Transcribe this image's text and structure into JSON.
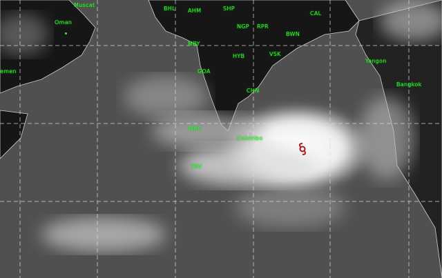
{
  "map": {
    "type": "infrared satellite image",
    "colors": {
      "ocean": "#505050",
      "land": "#141414",
      "cloud": "#f2f2f2",
      "labels": "#3cf03c",
      "cyclone_symbol": "#b01818"
    },
    "labels": [
      {
        "id": "muscat",
        "text": "Muscat"
      },
      {
        "id": "oman",
        "text": "Oman"
      },
      {
        "id": "yemen",
        "text": "emen"
      },
      {
        "id": "bhl",
        "text": "BHL"
      },
      {
        "id": "ahm",
        "text": "AHM"
      },
      {
        "id": "shp",
        "text": "SHP"
      },
      {
        "id": "ngp",
        "text": "NGP"
      },
      {
        "id": "rpr",
        "text": "RPR"
      },
      {
        "id": "cal",
        "text": "CAL"
      },
      {
        "id": "bwn",
        "text": "BWN"
      },
      {
        "id": "mby",
        "text": "MBY"
      },
      {
        "id": "hyb",
        "text": "HYB"
      },
      {
        "id": "vsk",
        "text": "VSK"
      },
      {
        "id": "goa",
        "text": "GOA"
      },
      {
        "id": "chn",
        "text": "CHN"
      },
      {
        "id": "mnc",
        "text": "MNC"
      },
      {
        "id": "trv",
        "text": "TRV"
      },
      {
        "id": "colombo",
        "text": "Colombo"
      },
      {
        "id": "yangon",
        "text": "Yangon"
      },
      {
        "id": "bangkok",
        "text": "Bangkok"
      }
    ],
    "cyclone_icon": "cyclone-symbol-icon"
  }
}
